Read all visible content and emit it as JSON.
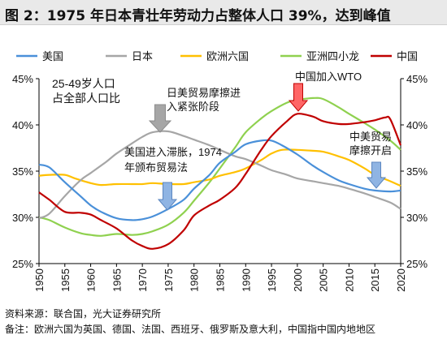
{
  "title": "图 2：1975 年日本青壮年劳动力占整体人口 39%，达到峰值",
  "source": "资料来源：联合国，光大证券研究所",
  "note": "备注：欧洲六国为英国、德国、法国、西班牙、俄罗斯及意大利，中国指中国内地地区",
  "colors": {
    "us": "#4a90d9",
    "japan": "#a6a6a6",
    "europe6": "#ffc000",
    "asia4": "#8fd14f",
    "china": "#c00000",
    "arrow_gray": "#a6a6a6",
    "arrow_blue": "#8fb4e3",
    "arrow_red": "#ff6666"
  },
  "chart_data": {
    "type": "line",
    "ylabel_annotation": [
      "25-49岁人口",
      "占全部人口比"
    ],
    "ylim": [
      25,
      45
    ],
    "yticks": [
      "25%",
      "30%",
      "35%",
      "40%",
      "45%"
    ],
    "ytick_values": [
      25,
      30,
      35,
      40,
      45
    ],
    "xlim": [
      1950,
      2020
    ],
    "xticks": [
      "1950",
      "1955",
      "1960",
      "1965",
      "1970",
      "1975",
      "1980",
      "1985",
      "1990",
      "1995",
      "2000",
      "2005",
      "2010",
      "2015",
      "2020"
    ],
    "xtick_values": [
      1950,
      1955,
      1960,
      1965,
      1970,
      1975,
      1980,
      1985,
      1990,
      1995,
      2000,
      2005,
      2010,
      2015,
      2020
    ],
    "legend_position": "top",
    "series": [
      {
        "name": "美国",
        "key": "us",
        "points": [
          [
            1950,
            35.7
          ],
          [
            1952,
            35.4
          ],
          [
            1955,
            33.8
          ],
          [
            1958,
            32.3
          ],
          [
            1960,
            31.3
          ],
          [
            1962,
            30.6
          ],
          [
            1965,
            29.9
          ],
          [
            1968,
            29.7
          ],
          [
            1970,
            29.8
          ],
          [
            1972,
            30.1
          ],
          [
            1975,
            30.9
          ],
          [
            1978,
            31.9
          ],
          [
            1980,
            33.1
          ],
          [
            1983,
            34.6
          ],
          [
            1985,
            35.9
          ],
          [
            1988,
            37.1
          ],
          [
            1990,
            37.9
          ],
          [
            1993,
            38.3
          ],
          [
            1995,
            38.3
          ],
          [
            1997,
            37.8
          ],
          [
            2000,
            36.8
          ],
          [
            2003,
            35.6
          ],
          [
            2005,
            34.9
          ],
          [
            2008,
            34.0
          ],
          [
            2010,
            33.6
          ],
          [
            2013,
            33.1
          ],
          [
            2015,
            32.9
          ],
          [
            2018,
            32.8
          ],
          [
            2020,
            32.9
          ]
        ]
      },
      {
        "name": "日本",
        "key": "japan",
        "points": [
          [
            1950,
            29.9
          ],
          [
            1952,
            30.4
          ],
          [
            1955,
            32.3
          ],
          [
            1958,
            34.0
          ],
          [
            1960,
            34.8
          ],
          [
            1963,
            36.0
          ],
          [
            1965,
            36.9
          ],
          [
            1968,
            38.0
          ],
          [
            1970,
            38.7
          ],
          [
            1972,
            39.2
          ],
          [
            1975,
            39.3
          ],
          [
            1978,
            38.8
          ],
          [
            1980,
            38.4
          ],
          [
            1983,
            37.8
          ],
          [
            1985,
            37.3
          ],
          [
            1988,
            36.6
          ],
          [
            1990,
            36.3
          ],
          [
            1993,
            35.6
          ],
          [
            1995,
            35.1
          ],
          [
            1998,
            34.6
          ],
          [
            2000,
            34.2
          ],
          [
            2003,
            33.9
          ],
          [
            2005,
            33.7
          ],
          [
            2008,
            33.4
          ],
          [
            2010,
            33.1
          ],
          [
            2013,
            32.6
          ],
          [
            2015,
            32.2
          ],
          [
            2018,
            31.6
          ],
          [
            2020,
            30.9
          ]
        ]
      },
      {
        "name": "欧洲六国",
        "key": "europe6",
        "points": [
          [
            1950,
            34.5
          ],
          [
            1952,
            34.6
          ],
          [
            1955,
            34.6
          ],
          [
            1957,
            34.2
          ],
          [
            1960,
            33.7
          ],
          [
            1962,
            33.5
          ],
          [
            1965,
            33.6
          ],
          [
            1968,
            33.6
          ],
          [
            1970,
            33.6
          ],
          [
            1972,
            33.7
          ],
          [
            1975,
            33.6
          ],
          [
            1978,
            33.6
          ],
          [
            1980,
            33.8
          ],
          [
            1983,
            34.1
          ],
          [
            1985,
            34.5
          ],
          [
            1988,
            34.9
          ],
          [
            1990,
            35.3
          ],
          [
            1993,
            36.2
          ],
          [
            1995,
            36.9
          ],
          [
            1997,
            37.3
          ],
          [
            2000,
            37.3
          ],
          [
            2003,
            37.2
          ],
          [
            2005,
            37.1
          ],
          [
            2008,
            36.6
          ],
          [
            2010,
            36.2
          ],
          [
            2013,
            35.3
          ],
          [
            2015,
            34.6
          ],
          [
            2018,
            33.9
          ],
          [
            2020,
            33.4
          ]
        ]
      },
      {
        "name": "亚洲四小龙",
        "key": "asia4",
        "points": [
          [
            1950,
            30.0
          ],
          [
            1952,
            29.7
          ],
          [
            1955,
            28.9
          ],
          [
            1958,
            28.3
          ],
          [
            1960,
            28.1
          ],
          [
            1962,
            28.0
          ],
          [
            1965,
            28.2
          ],
          [
            1968,
            28.1
          ],
          [
            1970,
            28.2
          ],
          [
            1972,
            28.5
          ],
          [
            1975,
            29.2
          ],
          [
            1978,
            30.5
          ],
          [
            1980,
            31.8
          ],
          [
            1983,
            33.8
          ],
          [
            1985,
            35.3
          ],
          [
            1988,
            37.6
          ],
          [
            1990,
            39.2
          ],
          [
            1993,
            40.7
          ],
          [
            1995,
            41.5
          ],
          [
            1998,
            42.4
          ],
          [
            2000,
            42.7
          ],
          [
            2003,
            42.9
          ],
          [
            2005,
            42.8
          ],
          [
            2008,
            41.9
          ],
          [
            2010,
            41.2
          ],
          [
            2013,
            40.2
          ],
          [
            2015,
            39.5
          ],
          [
            2018,
            38.3
          ],
          [
            2020,
            37.3
          ]
        ]
      },
      {
        "name": "中国",
        "key": "china",
        "points": [
          [
            1950,
            32.7
          ],
          [
            1952,
            31.9
          ],
          [
            1955,
            30.6
          ],
          [
            1958,
            30.5
          ],
          [
            1960,
            30.3
          ],
          [
            1962,
            29.7
          ],
          [
            1965,
            28.8
          ],
          [
            1968,
            27.5
          ],
          [
            1970,
            26.9
          ],
          [
            1972,
            26.6
          ],
          [
            1975,
            27.1
          ],
          [
            1978,
            28.6
          ],
          [
            1980,
            30.2
          ],
          [
            1983,
            31.3
          ],
          [
            1985,
            31.9
          ],
          [
            1988,
            33.2
          ],
          [
            1990,
            34.7
          ],
          [
            1993,
            37.3
          ],
          [
            1995,
            38.8
          ],
          [
            1998,
            40.4
          ],
          [
            2000,
            41.2
          ],
          [
            2003,
            40.9
          ],
          [
            2005,
            40.4
          ],
          [
            2008,
            40.1
          ],
          [
            2010,
            40.1
          ],
          [
            2013,
            40.3
          ],
          [
            2015,
            40.5
          ],
          [
            2017,
            40.8
          ],
          [
            2018,
            40.6
          ],
          [
            2020,
            37.8
          ]
        ]
      }
    ],
    "annotations": [
      {
        "key": "japan_trade",
        "lines": [
          "日美贸易摩擦进",
          "入紧张阶段"
        ]
      },
      {
        "key": "us_stagflation",
        "lines": [
          "美国进入滞胀，1974",
          "年颁布贸易法"
        ]
      },
      {
        "key": "china_wto",
        "lines": [
          "中国加入WTO"
        ]
      },
      {
        "key": "china_us_trade",
        "lines": [
          "中美贸易",
          "摩擦开启"
        ]
      }
    ]
  }
}
